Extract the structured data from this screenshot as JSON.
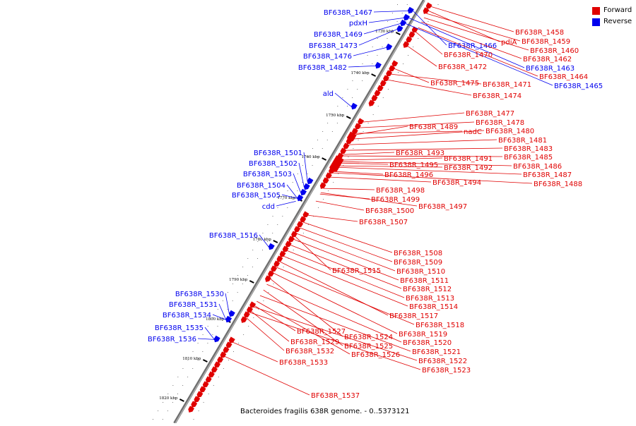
{
  "caption": "Bacteroides fragilis 638R genome. - 0..5373121",
  "colors": {
    "forward": "#e00000",
    "reverse": "#0000ee",
    "axis": "#909090",
    "tick": "#000000"
  },
  "legend": [
    {
      "label": "Forward",
      "color": "#e00000"
    },
    {
      "label": "Reverse",
      "color": "#0000ee"
    }
  ],
  "ticks": [
    "1730 kbp",
    "1740 kbp",
    "1750 kbp",
    "1760 kbp",
    "1770 kbp",
    "1780 kbp",
    "1790 kbp",
    "1800 kbp",
    "1810 kbp",
    "1820 kbp"
  ],
  "reverse_genes": [
    "BF638R_1467",
    "pdxH",
    "BF638R_1469",
    "BF638R_1473",
    "BF638R_1476",
    "BF638R_1482",
    "ald",
    "BF638R_1501",
    "BF638R_1502",
    "BF638R_1503",
    "BF638R_1504",
    "BF638R_1505",
    "cdd",
    "BF638R_1516",
    "BF638R_1530",
    "BF638R_1531",
    "BF638R_1534",
    "BF638R_1535",
    "BF638R_1536",
    "BF638R_1466",
    "BF638R_1463",
    "BF638R_1465"
  ],
  "forward_genes": [
    "BF638R_1458",
    "pdiA",
    "BF638R_1459",
    "BF638R_1460",
    "BF638R_1470",
    "BF638R_1462",
    "BF638R_1472",
    "BF638R_1464",
    "BF638R_1475",
    "BF638R_1471",
    "BF638R_1474",
    "BF638R_1477",
    "BF638R_1478",
    "BF638R_1489",
    "nadC",
    "BF638R_1480",
    "BF638R_1481",
    "BF638R_1483",
    "BF638R_1493",
    "BF638R_1491",
    "BF638R_1485",
    "BF638R_1495",
    "BF638R_1492",
    "BF638R_1486",
    "BF638R_1496",
    "BF638R_1487",
    "BF638R_1494",
    "BF638R_1488",
    "BF638R_1498",
    "BF638R_1499",
    "BF638R_1497",
    "BF638R_1500",
    "BF638R_1507",
    "BF638R_1508",
    "BF638R_1509",
    "BF638R_1515",
    "BF638R_1510",
    "BF638R_1511",
    "BF638R_1512",
    "BF638R_1513",
    "BF638R_1514",
    "BF638R_1517",
    "BF638R_1518",
    "BF638R_1527",
    "BF638R_1519",
    "BF638R_1524",
    "BF638R_1529",
    "BF638R_1520",
    "BF638R_1525",
    "BF638R_1532",
    "BF638R_1521",
    "BF638R_1526",
    "BF638R_1522",
    "BF638R_1533",
    "BF638R_1523",
    "BF638R_1537"
  ]
}
